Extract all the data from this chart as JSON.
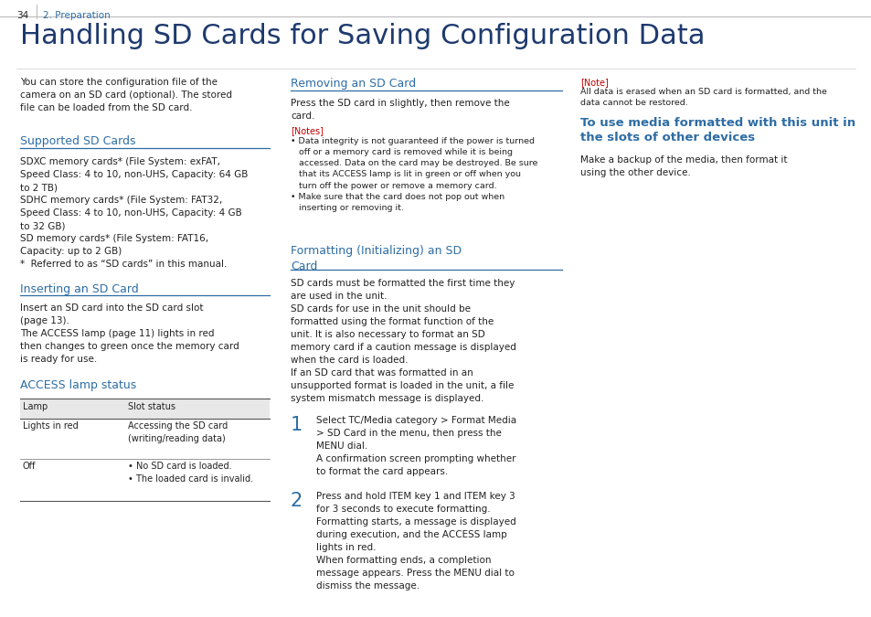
{
  "page_number": "34",
  "breadcrumb": "2. Preparation",
  "title": "Handling SD Cards for Saving Configuration Data",
  "accent_color": "#2e6da4",
  "red_color": "#c00000",
  "body_color": "#222222",
  "bg_color": "#ffffff",
  "intro_text": "You can store the configuration file of the\ncamera on an SD card (optional). The stored\nfile can be loaded from the SD card.",
  "supported_heading": "Supported SD Cards",
  "supported_body": "SDXC memory cards* (File System: exFAT,\nSpeed Class: 4 to 10, non-UHS, Capacity: 64 GB\nto 2 TB)\nSDHC memory cards* (File System: FAT32,\nSpeed Class: 4 to 10, non-UHS, Capacity: 4 GB\nto 32 GB)\nSD memory cards* (File System: FAT16,\nCapacity: up to 2 GB)\n*  Referred to as “SD cards” in this manual.",
  "inserting_heading": "Inserting an SD Card",
  "inserting_body": "Insert an SD card into the SD card slot\n(page 13).\nThe ACCESS lamp (page 11) lights in red\nthen changes to green once the memory card\nis ready for use.",
  "access_heading": "ACCESS lamp status",
  "table_header": [
    "Lamp",
    "Slot status"
  ],
  "table_rows": [
    [
      "Lights in red",
      "Accessing the SD card\n(writing/reading data)"
    ],
    [
      "Off",
      "• No SD card is loaded.\n• The loaded card is invalid."
    ]
  ],
  "removing_heading": "Removing an SD Card",
  "removing_body": "Press the SD card in slightly, then remove the\ncard.",
  "removing_notes_heading": "[Notes]",
  "removing_notes": "• Data integrity is not guaranteed if the power is turned\n   off or a memory card is removed while it is being\n   accessed. Data on the card may be destroyed. Be sure\n   that its ACCESS lamp is lit in green or off when you\n   turn off the power or remove a memory card.\n• Make sure that the card does not pop out when\n   inserting or removing it.",
  "formatting_heading": "Formatting (Initializing) an SD\nCard",
  "formatting_body": "SD cards must be formatted the first time they\nare used in the unit.\nSD cards for use in the unit should be\nformatted using the format function of the\nunit. It is also necessary to format an SD\nmemory card if a caution message is displayed\nwhen the card is loaded.\nIf an SD card that was formatted in an\nunsupported format is loaded in the unit, a file\nsystem mismatch message is displayed.",
  "step1_num": "1",
  "step1_text": "Select TC/Media category > Format Media\n> SD Card in the menu, then press the\nMENU dial.\nA confirmation screen prompting whether\nto format the card appears.",
  "step2_num": "2",
  "step2_text": "Press and hold ITEM key 1 and ITEM key 3\nfor 3 seconds to execute formatting.\nFormatting starts, a message is displayed\nduring execution, and the ACCESS lamp\nlights in red.\nWhen formatting ends, a completion\nmessage appears. Press the MENU dial to\ndismiss the message.",
  "note_heading": "[Note]",
  "note_body": "All data is erased when an SD card is formatted, and the\ndata cannot be restored.",
  "use_media_heading": "To use media formatted with this unit in\nthe slots of other devices",
  "use_media_body": "Make a backup of the media, then format it\nusing the other device."
}
